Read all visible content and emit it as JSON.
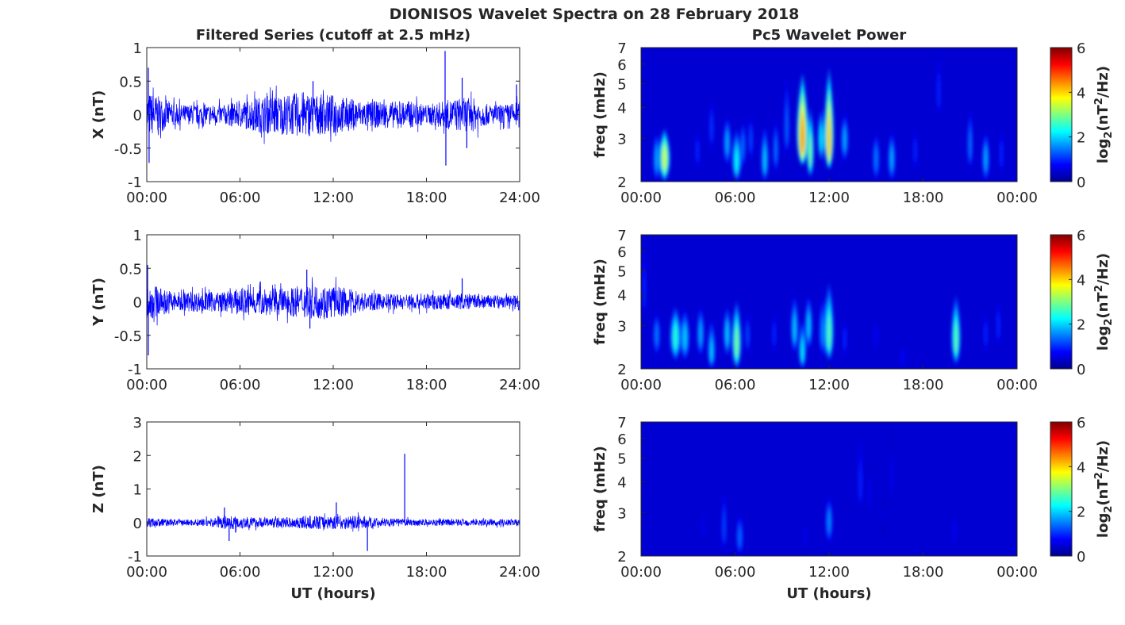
{
  "figure": {
    "title": "DIONISOS Wavelet Spectra on 28 February 2018"
  },
  "chart_data": [
    {
      "type": "line",
      "panel": "filtered-x",
      "title": "Filtered Series (cutoff at 2.5 mHz)",
      "xlabel": "",
      "ylabel": "X (nT)",
      "xlim": [
        0,
        24
      ],
      "ylim": [
        -1,
        1
      ],
      "x_ticks": [
        "00:00",
        "06:00",
        "12:00",
        "18:00",
        "24:00"
      ],
      "y_ticks": [
        "-1",
        "-0.5",
        "0",
        "0.5",
        "1"
      ],
      "y_tick_values": [
        -1,
        -0.5,
        0,
        0.5,
        1
      ],
      "color": "#0000ff",
      "grid": false,
      "envelope": {
        "x": [
          0,
          1,
          2,
          3,
          4,
          5,
          6,
          7,
          8,
          9,
          10,
          11,
          12,
          13,
          14,
          15,
          16,
          17,
          18,
          19,
          20,
          21,
          22,
          23,
          24
        ],
        "amplitude": [
          0.35,
          0.25,
          0.15,
          0.15,
          0.15,
          0.15,
          0.2,
          0.25,
          0.3,
          0.3,
          0.35,
          0.3,
          0.3,
          0.25,
          0.2,
          0.2,
          0.2,
          0.2,
          0.15,
          0.2,
          0.25,
          0.25,
          0.15,
          0.15,
          0.2
        ]
      },
      "spikes": [
        {
          "x": 0.1,
          "y": 0.7
        },
        {
          "x": 0.15,
          "y": -0.72
        },
        {
          "x": 10.7,
          "y": 0.5
        },
        {
          "x": 19.2,
          "y": 0.95
        },
        {
          "x": 19.25,
          "y": -0.76
        },
        {
          "x": 20.3,
          "y": 0.55
        },
        {
          "x": 20.6,
          "y": -0.5
        },
        {
          "x": 23.8,
          "y": 0.45
        }
      ]
    },
    {
      "type": "line",
      "panel": "filtered-y",
      "title": "",
      "xlabel": "",
      "ylabel": "Y (nT)",
      "xlim": [
        0,
        24
      ],
      "ylim": [
        -1,
        1
      ],
      "x_ticks": [
        "00:00",
        "06:00",
        "12:00",
        "18:00",
        "24:00"
      ],
      "y_ticks": [
        "-1",
        "-0.5",
        "0",
        "0.5",
        "1"
      ],
      "y_tick_values": [
        -1,
        -0.5,
        0,
        0.5,
        1
      ],
      "color": "#0000ff",
      "grid": false,
      "envelope": {
        "x": [
          0,
          1,
          2,
          3,
          4,
          5,
          6,
          7,
          8,
          9,
          10,
          11,
          12,
          13,
          14,
          15,
          16,
          17,
          18,
          19,
          20,
          21,
          22,
          23,
          24
        ],
        "amplitude": [
          0.3,
          0.2,
          0.15,
          0.15,
          0.15,
          0.15,
          0.2,
          0.2,
          0.2,
          0.2,
          0.25,
          0.25,
          0.25,
          0.2,
          0.15,
          0.12,
          0.12,
          0.12,
          0.12,
          0.12,
          0.12,
          0.12,
          0.1,
          0.1,
          0.12
        ]
      },
      "spikes": [
        {
          "x": 0.05,
          "y": 0.55
        },
        {
          "x": 0.1,
          "y": -0.8
        },
        {
          "x": 10.3,
          "y": 0.48
        },
        {
          "x": 10.5,
          "y": -0.4
        },
        {
          "x": 20.3,
          "y": 0.35
        }
      ]
    },
    {
      "type": "line",
      "panel": "filtered-z",
      "title": "",
      "xlabel": "UT (hours)",
      "ylabel": "Z (nT)",
      "xlim": [
        0,
        24
      ],
      "ylim": [
        -1,
        3
      ],
      "x_ticks": [
        "00:00",
        "06:00",
        "12:00",
        "18:00",
        "24:00"
      ],
      "y_ticks": [
        "-1",
        "0",
        "1",
        "2",
        "3"
      ],
      "y_tick_values": [
        -1,
        0,
        1,
        2,
        3
      ],
      "color": "#0000ff",
      "grid": false,
      "envelope": {
        "x": [
          0,
          1,
          2,
          3,
          4,
          5,
          6,
          7,
          8,
          9,
          10,
          11,
          12,
          13,
          14,
          15,
          16,
          17,
          18,
          19,
          20,
          21,
          22,
          23,
          24
        ],
        "amplitude": [
          0.15,
          0.12,
          0.1,
          0.1,
          0.12,
          0.2,
          0.2,
          0.15,
          0.15,
          0.15,
          0.2,
          0.2,
          0.2,
          0.2,
          0.2,
          0.12,
          0.12,
          0.1,
          0.1,
          0.1,
          0.1,
          0.1,
          0.1,
          0.1,
          0.1
        ]
      },
      "spikes": [
        {
          "x": 5.0,
          "y": 0.45
        },
        {
          "x": 5.3,
          "y": -0.55
        },
        {
          "x": 12.2,
          "y": 0.6
        },
        {
          "x": 14.2,
          "y": -0.85
        },
        {
          "x": 16.6,
          "y": 2.05
        }
      ]
    },
    {
      "type": "heatmap",
      "panel": "wavelet-x",
      "title": "Pc5 Wavelet Power",
      "xlabel": "",
      "ylabel": "freq (mHz)",
      "xlim": [
        0,
        24
      ],
      "ylim": [
        2,
        7
      ],
      "y_scale": "log",
      "x_ticks": [
        "00:00",
        "06:00",
        "12:00",
        "18:00",
        "00:00"
      ],
      "y_ticks": [
        "2",
        "3",
        "4",
        "5",
        "6",
        "7"
      ],
      "y_tick_values": [
        2,
        3,
        4,
        5,
        6,
        7
      ],
      "colorbar": {
        "label": "log2(nT^2/Hz)",
        "range": [
          0,
          6
        ],
        "ticks": [
          "0",
          "2",
          "4",
          "6"
        ],
        "colormap": "jet"
      },
      "background_value": 0.2,
      "bursts": [
        {
          "t": 1.5,
          "f": 2.5,
          "power": 3.5,
          "width_h": 0.3,
          "fmax": 3.3
        },
        {
          "t": 1.0,
          "f": 2.5,
          "power": 1.8,
          "width_h": 0.2,
          "fmax": 3.2
        },
        {
          "t": 3.6,
          "f": 2.7,
          "power": 1.0,
          "width_h": 0.15,
          "fmax": 3.3
        },
        {
          "t": 4.5,
          "f": 3.3,
          "power": 1.1,
          "width_h": 0.12,
          "fmax": 4.5
        },
        {
          "t": 5.5,
          "f": 2.9,
          "power": 1.8,
          "width_h": 0.2,
          "fmax": 3.7
        },
        {
          "t": 6.1,
          "f": 2.4,
          "power": 2.3,
          "width_h": 0.25,
          "fmax": 3.3
        },
        {
          "t": 6.5,
          "f": 2.8,
          "power": 1.5,
          "width_h": 0.15,
          "fmax": 3.6
        },
        {
          "t": 7.0,
          "f": 3.0,
          "power": 1.2,
          "width_h": 0.15,
          "fmax": 3.8
        },
        {
          "t": 7.9,
          "f": 2.4,
          "power": 2.0,
          "width_h": 0.2,
          "fmax": 3.4
        },
        {
          "t": 8.6,
          "f": 2.7,
          "power": 1.5,
          "width_h": 0.15,
          "fmax": 3.6
        },
        {
          "t": 9.3,
          "f": 3.2,
          "power": 1.4,
          "width_h": 0.15,
          "fmax": 5.5
        },
        {
          "t": 10.3,
          "f": 2.9,
          "power": 4.5,
          "width_h": 0.3,
          "fmax": 5.5
        },
        {
          "t": 10.8,
          "f": 2.6,
          "power": 3.0,
          "width_h": 0.2,
          "fmax": 4.0
        },
        {
          "t": 11.5,
          "f": 3.0,
          "power": 2.2,
          "width_h": 0.2,
          "fmax": 4.0
        },
        {
          "t": 12.0,
          "f": 2.8,
          "power": 4.2,
          "width_h": 0.25,
          "fmax": 5.8
        },
        {
          "t": 13.0,
          "f": 3.0,
          "power": 1.8,
          "width_h": 0.2,
          "fmax": 3.8
        },
        {
          "t": 15.0,
          "f": 2.5,
          "power": 1.5,
          "width_h": 0.2,
          "fmax": 3.2
        },
        {
          "t": 16.0,
          "f": 2.5,
          "power": 1.8,
          "width_h": 0.2,
          "fmax": 3.2
        },
        {
          "t": 17.5,
          "f": 2.7,
          "power": 1.0,
          "width_h": 0.15,
          "fmax": 3.4
        },
        {
          "t": 19.0,
          "f": 4.5,
          "power": 1.0,
          "width_h": 0.1,
          "fmax": 7.0
        },
        {
          "t": 21.0,
          "f": 2.8,
          "power": 1.5,
          "width_h": 0.15,
          "fmax": 4.0
        },
        {
          "t": 22.0,
          "f": 2.5,
          "power": 1.8,
          "width_h": 0.2,
          "fmax": 3.2
        },
        {
          "t": 23.0,
          "f": 2.6,
          "power": 1.0,
          "width_h": 0.15,
          "fmax": 3.4
        }
      ]
    },
    {
      "type": "heatmap",
      "panel": "wavelet-y",
      "title": "",
      "xlabel": "",
      "ylabel": "freq (mHz)",
      "xlim": [
        0,
        24
      ],
      "ylim": [
        2,
        7
      ],
      "y_scale": "log",
      "x_ticks": [
        "00:00",
        "06:00",
        "12:00",
        "18:00",
        "00:00"
      ],
      "y_ticks": [
        "2",
        "3",
        "4",
        "5",
        "6",
        "7"
      ],
      "y_tick_values": [
        2,
        3,
        4,
        5,
        6,
        7
      ],
      "colorbar": {
        "label": "log2(nT^2/Hz)",
        "range": [
          0,
          6
        ],
        "ticks": [
          "0",
          "2",
          "4",
          "6"
        ],
        "colormap": "jet"
      },
      "background_value": 0.2,
      "bursts": [
        {
          "t": 0.2,
          "f": 4.0,
          "power": 1.0,
          "width_h": 0.1,
          "fmax": 7.0
        },
        {
          "t": 1.0,
          "f": 2.8,
          "power": 1.5,
          "width_h": 0.2,
          "fmax": 3.4
        },
        {
          "t": 2.2,
          "f": 2.7,
          "power": 2.5,
          "width_h": 0.3,
          "fmax": 3.6
        },
        {
          "t": 2.8,
          "f": 2.7,
          "power": 2.0,
          "width_h": 0.25,
          "fmax": 3.5
        },
        {
          "t": 3.8,
          "f": 2.8,
          "power": 1.8,
          "width_h": 0.2,
          "fmax": 3.6
        },
        {
          "t": 4.5,
          "f": 2.3,
          "power": 2.0,
          "width_h": 0.2,
          "fmax": 3.2
        },
        {
          "t": 5.5,
          "f": 2.8,
          "power": 2.0,
          "width_h": 0.2,
          "fmax": 3.6
        },
        {
          "t": 6.1,
          "f": 2.5,
          "power": 3.0,
          "width_h": 0.25,
          "fmax": 3.8
        },
        {
          "t": 6.8,
          "f": 2.8,
          "power": 1.2,
          "width_h": 0.15,
          "fmax": 3.4
        },
        {
          "t": 8.5,
          "f": 2.8,
          "power": 1.0,
          "width_h": 0.15,
          "fmax": 3.5
        },
        {
          "t": 9.8,
          "f": 2.9,
          "power": 2.0,
          "width_h": 0.2,
          "fmax": 4.0
        },
        {
          "t": 10.3,
          "f": 2.3,
          "power": 2.2,
          "width_h": 0.2,
          "fmax": 3.2
        },
        {
          "t": 10.7,
          "f": 3.0,
          "power": 2.0,
          "width_h": 0.2,
          "fmax": 4.0
        },
        {
          "t": 11.6,
          "f": 2.8,
          "power": 1.6,
          "width_h": 0.2,
          "fmax": 4.0
        },
        {
          "t": 12.0,
          "f": 2.7,
          "power": 2.8,
          "width_h": 0.25,
          "fmax": 4.5
        },
        {
          "t": 13.0,
          "f": 2.7,
          "power": 1.0,
          "width_h": 0.15,
          "fmax": 3.2
        },
        {
          "t": 15.0,
          "f": 2.8,
          "power": 0.8,
          "width_h": 0.15,
          "fmax": 3.2
        },
        {
          "t": 16.7,
          "f": 2.2,
          "power": 0.8,
          "width_h": 0.2,
          "fmax": 2.6
        },
        {
          "t": 20.1,
          "f": 2.6,
          "power": 2.8,
          "width_h": 0.25,
          "fmax": 4.0
        },
        {
          "t": 22.0,
          "f": 2.8,
          "power": 1.0,
          "width_h": 0.15,
          "fmax": 3.5
        },
        {
          "t": 22.8,
          "f": 3.0,
          "power": 1.0,
          "width_h": 0.12,
          "fmax": 4.0
        }
      ]
    },
    {
      "type": "heatmap",
      "panel": "wavelet-z",
      "title": "",
      "xlabel": "UT (hours)",
      "ylabel": "freq (mHz)",
      "xlim": [
        0,
        24
      ],
      "ylim": [
        2,
        7
      ],
      "y_scale": "log",
      "x_ticks": [
        "00:00",
        "06:00",
        "12:00",
        "18:00",
        "00:00"
      ],
      "y_ticks": [
        "2",
        "3",
        "4",
        "5",
        "6",
        "7"
      ],
      "y_tick_values": [
        2,
        3,
        4,
        5,
        6,
        7
      ],
      "colorbar": {
        "label": "log2(nT^2/Hz)",
        "range": [
          0,
          6
        ],
        "ticks": [
          "0",
          "2",
          "4",
          "6"
        ],
        "colormap": "jet"
      },
      "background_value": 0.2,
      "bursts": [
        {
          "t": 4.0,
          "f": 2.7,
          "power": 0.7,
          "width_h": 0.12,
          "fmax": 3.3
        },
        {
          "t": 5.3,
          "f": 2.6,
          "power": 1.2,
          "width_h": 0.15,
          "fmax": 3.8
        },
        {
          "t": 6.3,
          "f": 2.4,
          "power": 1.4,
          "width_h": 0.2,
          "fmax": 3.0
        },
        {
          "t": 10.5,
          "f": 2.4,
          "power": 0.7,
          "width_h": 0.12,
          "fmax": 3.0
        },
        {
          "t": 12.0,
          "f": 2.8,
          "power": 1.6,
          "width_h": 0.2,
          "fmax": 3.5
        },
        {
          "t": 14.0,
          "f": 3.8,
          "power": 1.0,
          "width_h": 0.1,
          "fmax": 6.5
        },
        {
          "t": 14.6,
          "f": 3.5,
          "power": 0.7,
          "width_h": 0.1,
          "fmax": 5.0
        },
        {
          "t": 15.5,
          "f": 3.0,
          "power": 0.6,
          "width_h": 0.1,
          "fmax": 3.5
        },
        {
          "t": 16.0,
          "f": 4.0,
          "power": 0.7,
          "width_h": 0.08,
          "fmax": 7.0
        },
        {
          "t": 20.0,
          "f": 2.6,
          "power": 0.8,
          "width_h": 0.12,
          "fmax": 3.0
        }
      ]
    }
  ]
}
